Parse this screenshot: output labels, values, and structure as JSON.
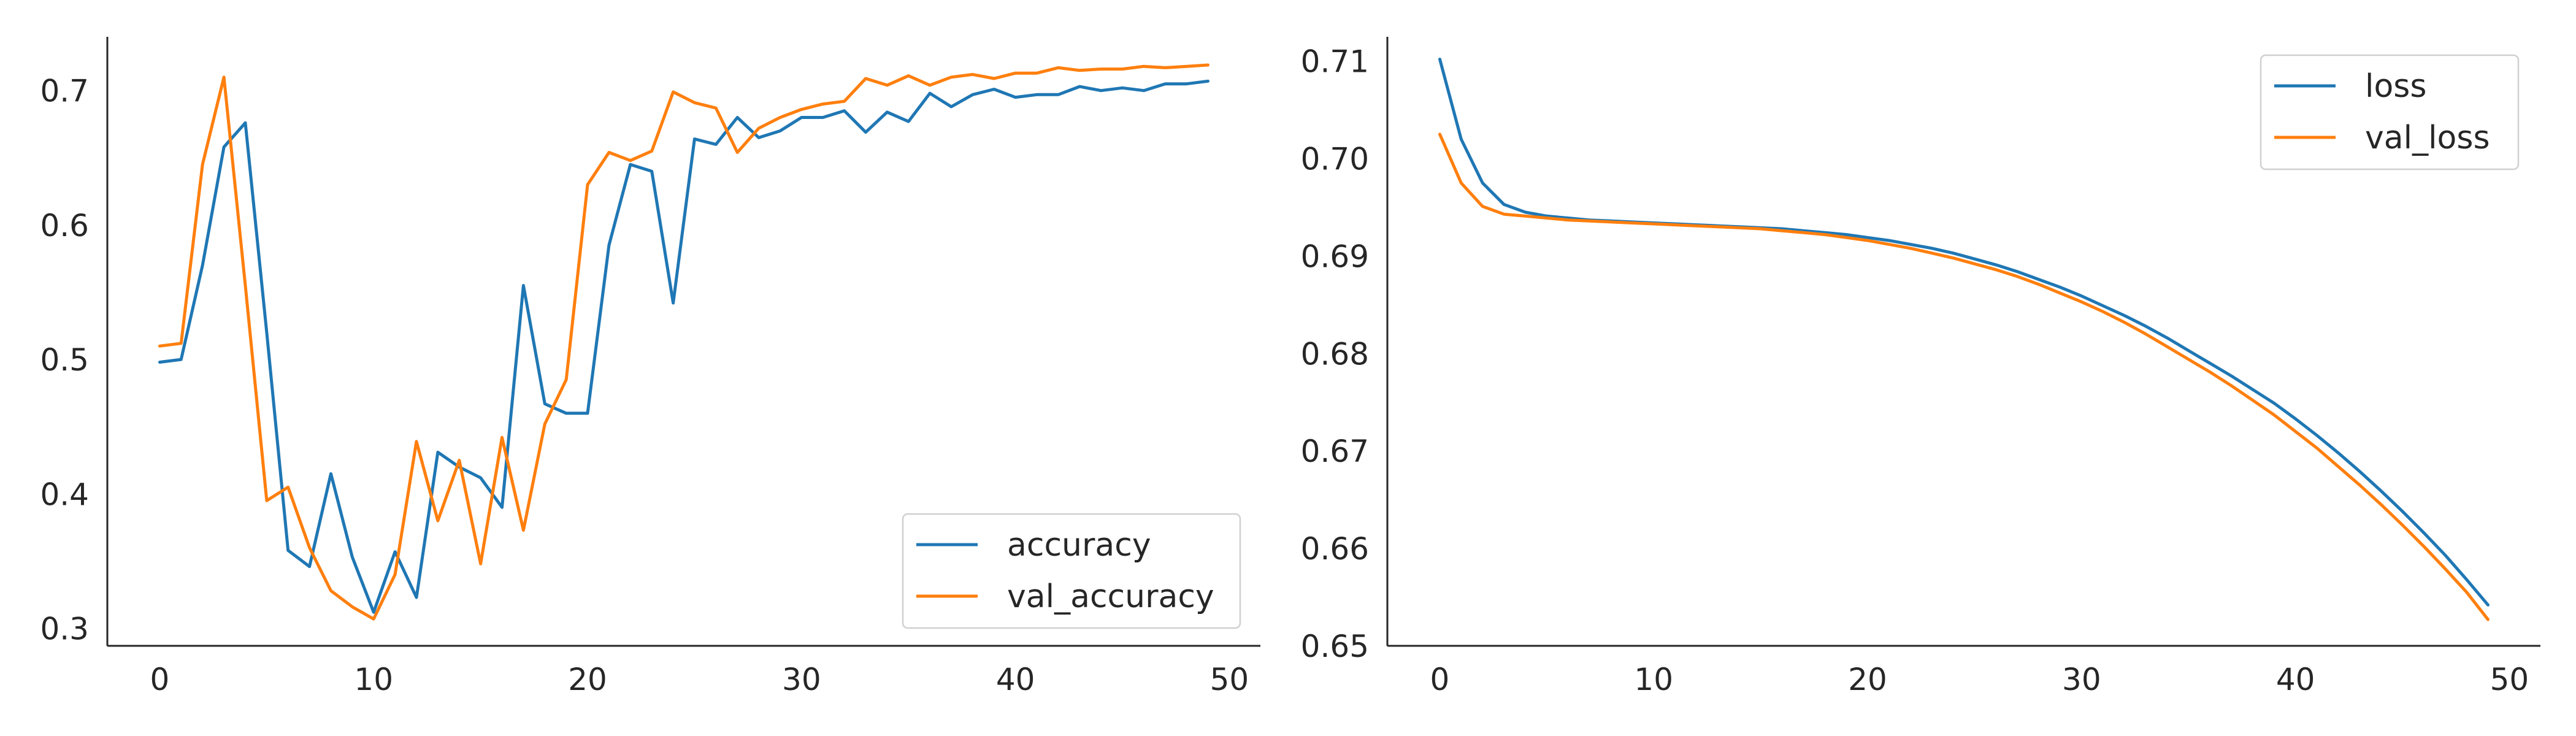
{
  "chart_data": [
    {
      "type": "line",
      "title": "",
      "xlabel": "",
      "ylabel": "",
      "xlim": [
        -2.45,
        51.45
      ],
      "ylim": [
        0.287,
        0.74
      ],
      "xticks": [
        0,
        10,
        20,
        30,
        40,
        50
      ],
      "xtick_labels": [
        "0",
        "10",
        "20",
        "30",
        "40",
        "50"
      ],
      "yticks": [
        0.3,
        0.4,
        0.5,
        0.6,
        0.7
      ],
      "ytick_labels": [
        "0.3",
        "0.4",
        "0.5",
        "0.6",
        "0.7"
      ],
      "grid": false,
      "legend_position": "lower-right",
      "x": [
        0,
        1,
        2,
        3,
        4,
        5,
        6,
        7,
        8,
        9,
        10,
        11,
        12,
        13,
        14,
        15,
        16,
        17,
        18,
        19,
        20,
        21,
        22,
        23,
        24,
        25,
        26,
        27,
        28,
        29,
        30,
        31,
        32,
        33,
        34,
        35,
        36,
        37,
        38,
        39,
        40,
        41,
        42,
        43,
        44,
        45,
        46,
        47,
        48,
        49
      ],
      "series": [
        {
          "name": "accuracy",
          "color": "#1f77b4",
          "values": [
            0.498,
            0.5,
            0.57,
            0.658,
            0.676,
            0.52,
            0.358,
            0.346,
            0.415,
            0.353,
            0.312,
            0.357,
            0.323,
            0.431,
            0.42,
            0.412,
            0.39,
            0.555,
            0.467,
            0.46,
            0.46,
            0.585,
            0.645,
            0.64,
            0.542,
            0.664,
            0.66,
            0.68,
            0.665,
            0.67,
            0.68,
            0.68,
            0.685,
            0.669,
            0.684,
            0.677,
            0.698,
            0.688,
            0.697,
            0.701,
            0.695,
            0.697,
            0.697,
            0.703,
            0.7,
            0.702,
            0.7,
            0.705,
            0.705,
            0.707
          ]
        },
        {
          "name": "val_accuracy",
          "color": "#ff7f0e",
          "values": [
            0.51,
            0.512,
            0.645,
            0.71,
            0.555,
            0.395,
            0.405,
            0.36,
            0.328,
            0.316,
            0.307,
            0.34,
            0.439,
            0.38,
            0.425,
            0.348,
            0.442,
            0.373,
            0.452,
            0.485,
            0.63,
            0.654,
            0.648,
            0.655,
            0.699,
            0.691,
            0.687,
            0.654,
            0.672,
            0.68,
            0.686,
            0.69,
            0.692,
            0.709,
            0.704,
            0.711,
            0.704,
            0.71,
            0.712,
            0.709,
            0.713,
            0.713,
            0.717,
            0.715,
            0.716,
            0.716,
            0.718,
            0.717,
            0.718,
            0.719
          ]
        }
      ]
    },
    {
      "type": "line",
      "title": "",
      "xlabel": "",
      "ylabel": "",
      "xlim": [
        -2.45,
        51.45
      ],
      "ylim": [
        0.65,
        0.7125
      ],
      "xticks": [
        0,
        10,
        20,
        30,
        40,
        50
      ],
      "xtick_labels": [
        "0",
        "10",
        "20",
        "30",
        "40",
        "50"
      ],
      "yticks": [
        0.65,
        0.66,
        0.67,
        0.68,
        0.69,
        0.7,
        0.71
      ],
      "ytick_labels": [
        "0.65",
        "0.66",
        "0.67",
        "0.68",
        "0.69",
        "0.70",
        "0.71"
      ],
      "grid": false,
      "legend_position": "upper-right",
      "x": [
        0,
        1,
        2,
        3,
        4,
        5,
        6,
        7,
        8,
        9,
        10,
        11,
        12,
        13,
        14,
        15,
        16,
        17,
        18,
        19,
        20,
        21,
        22,
        23,
        24,
        25,
        26,
        27,
        28,
        29,
        30,
        31,
        32,
        33,
        34,
        35,
        36,
        37,
        38,
        39,
        40,
        41,
        42,
        43,
        44,
        45,
        46,
        47,
        48,
        49
      ],
      "series": [
        {
          "name": "loss",
          "color": "#1f77b4",
          "values": [
            0.7102,
            0.702,
            0.6975,
            0.6953,
            0.6945,
            0.6941,
            0.6939,
            0.6937,
            0.6936,
            0.6935,
            0.6934,
            0.6933,
            0.6932,
            0.6931,
            0.693,
            0.6929,
            0.6928,
            0.6926,
            0.6924,
            0.6922,
            0.6919,
            0.6916,
            0.6912,
            0.6908,
            0.6903,
            0.6897,
            0.6891,
            0.6884,
            0.6876,
            0.6868,
            0.6859,
            0.6849,
            0.6839,
            0.6828,
            0.6816,
            0.6803,
            0.679,
            0.6777,
            0.6763,
            0.6749,
            0.6733,
            0.6716,
            0.6698,
            0.6679,
            0.6659,
            0.6638,
            0.6616,
            0.6593,
            0.6568,
            0.6542
          ]
        },
        {
          "name": "val_loss",
          "color": "#ff7f0e",
          "values": [
            0.7025,
            0.6975,
            0.6951,
            0.6943,
            0.6941,
            0.6939,
            0.6937,
            0.6936,
            0.6935,
            0.6934,
            0.6933,
            0.6932,
            0.6931,
            0.693,
            0.6929,
            0.6928,
            0.6926,
            0.6924,
            0.6922,
            0.6919,
            0.6916,
            0.6912,
            0.6908,
            0.6903,
            0.6898,
            0.6892,
            0.6886,
            0.6879,
            0.6871,
            0.6862,
            0.6853,
            0.6843,
            0.6832,
            0.682,
            0.6807,
            0.6794,
            0.6781,
            0.6767,
            0.6752,
            0.6737,
            0.672,
            0.6703,
            0.6684,
            0.6665,
            0.6645,
            0.6624,
            0.6602,
            0.6579,
            0.6555,
            0.6527
          ]
        }
      ]
    }
  ]
}
